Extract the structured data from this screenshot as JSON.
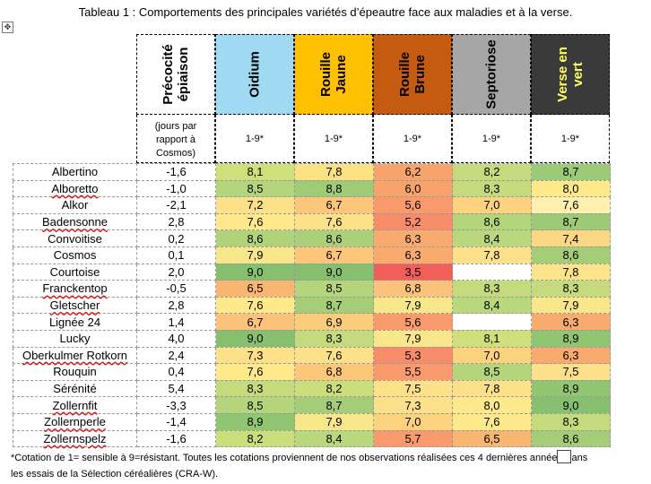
{
  "caption": "Tableau 1 : Comportements des principales variétés d’épeautre face aux maladies et à la verse.",
  "move_handle_glyph": "✥",
  "headers": {
    "precocite": "Précocité\népiaison",
    "precocite_sub": [
      "(jours par",
      "rapport à",
      "Cosmos)"
    ],
    "columns": [
      {
        "label": "Oidium",
        "bg": "#9fd9f2",
        "fg": "#000000"
      },
      {
        "label": "Rouille\nJaune",
        "bg": "#ffc000",
        "fg": "#000000"
      },
      {
        "label": "Rouille\nBrune",
        "bg": "#c55a11",
        "fg": "#000000"
      },
      {
        "label": "Septoriose",
        "bg": "#a6a6a6",
        "fg": "#000000"
      },
      {
        "label": "Verse en\nvert",
        "bg": "#3a3a3a",
        "fg": "#ffff66"
      }
    ],
    "scale": "1-9*"
  },
  "rows": [
    {
      "name": "Albertino",
      "prec": "-1,6",
      "vals": [
        "8,1",
        "7,8",
        "6,2",
        "8,2",
        "8,7"
      ],
      "colors": [
        "#cfe07b",
        "#fce183",
        "#f8a36c",
        "#c5da7c",
        "#9cca77"
      ]
    },
    {
      "name": "Alboretto",
      "prec": "-1,0",
      "vals": [
        "8,5",
        "8,8",
        "6,0",
        "8,3",
        "8,0"
      ],
      "colors": [
        "#b5d57c",
        "#9fcb77",
        "#f8a36c",
        "#c5da7c",
        "#ffe98a"
      ]
    },
    {
      "name": "Alkor",
      "prec": "-2,1",
      "vals": [
        "7,2",
        "6,7",
        "5,6",
        "7,0",
        "7,6"
      ],
      "colors": [
        "#fde08a",
        "#fcc67b",
        "#f99a6c",
        "#fdd27e",
        "#fff0b0"
      ]
    },
    {
      "name": "Badensonne",
      "prec": "2,8",
      "vals": [
        "7,6",
        "7,6",
        "5,2",
        "8,6",
        "8,7"
      ],
      "colors": [
        "#ffe98a",
        "#fde08a",
        "#f68c6a",
        "#b4d47b",
        "#9cca77"
      ]
    },
    {
      "name": "Convoitise",
      "prec": "0,2",
      "vals": [
        "8,6",
        "8,6",
        "6,3",
        "8,4",
        "7,4"
      ],
      "colors": [
        "#b0d27a",
        "#acd07a",
        "#f9ab6f",
        "#b9d77c",
        "#fbd784"
      ]
    },
    {
      "name": "Cosmos",
      "prec": "0,1",
      "vals": [
        "7,9",
        "6,7",
        "6,3",
        "7,8",
        "8,6"
      ],
      "colors": [
        "#f7e68a",
        "#fcc67b",
        "#f9ab6f",
        "#fde08a",
        "#a5cd78"
      ]
    },
    {
      "name": "Courtoise",
      "prec": "2,0",
      "vals": [
        "9,0",
        "9,0",
        "3,5",
        null,
        "7,8"
      ],
      "colors": [
        "#86c06f",
        "#86c06f",
        "#f25f5a",
        null,
        "#fde48a"
      ]
    },
    {
      "name": "Franckentop",
      "prec": "-0,5",
      "vals": [
        "6,5",
        "8,5",
        "6,8",
        "8,3",
        "8,3"
      ],
      "colors": [
        "#f9b572",
        "#b5d57c",
        "#fbc27b",
        "#c5da7c",
        "#c5da7c"
      ]
    },
    {
      "name": "Gletscher",
      "prec": "2,8",
      "vals": [
        "7,6",
        "8,7",
        "7,9",
        "8,4",
        "7,9"
      ],
      "colors": [
        "#ffe98a",
        "#a5cd78",
        "#f7e68a",
        "#b9d77c",
        "#f7e68a"
      ]
    },
    {
      "name": "Lignée 24",
      "prec": "1,4",
      "vals": [
        "6,7",
        "6,9",
        "5,6",
        null,
        "6,3"
      ],
      "colors": [
        "#fbc27b",
        "#fccc7d",
        "#f99a6c",
        null,
        "#f9ab6f"
      ]
    },
    {
      "name": "Lucky",
      "prec": "4,0",
      "vals": [
        "9,0",
        "8,3",
        "7,9",
        "8,1",
        "8,9"
      ],
      "colors": [
        "#86c06f",
        "#c5da7c",
        "#f7e68a",
        "#cfe07b",
        "#90c572"
      ]
    },
    {
      "name": "Oberkulmer Rotkorn",
      "prec": "2,4",
      "vals": [
        "7,3",
        "7,6",
        "5,3",
        "7,0",
        "6,3"
      ],
      "colors": [
        "#fde08a",
        "#fde08a",
        "#f68c6a",
        "#fdd27e",
        "#f9ab6f"
      ]
    },
    {
      "name": "Rouquin",
      "prec": "0,4",
      "vals": [
        "7,6",
        "6,8",
        "5,5",
        "8,5",
        "7,5"
      ],
      "colors": [
        "#ffe98a",
        "#fcc67b",
        "#f99a6c",
        "#b5d57c",
        "#fde08a"
      ]
    },
    {
      "name": "Sérénité",
      "prec": "5,4",
      "vals": [
        "8,3",
        "8,2",
        "7,5",
        "7,8",
        "8,9"
      ],
      "colors": [
        "#c5da7c",
        "#cbde7c",
        "#fde08a",
        "#fde08a",
        "#90c572"
      ]
    },
    {
      "name": "Zollernfit",
      "prec": "-3,3",
      "vals": [
        "8,5",
        "8,7",
        "7,3",
        "8,0",
        "9,0"
      ],
      "colors": [
        "#b5d57c",
        "#a5cd78",
        "#fde08a",
        "#ffe98a",
        "#86c06f"
      ]
    },
    {
      "name": "Zollernperle",
      "prec": "-1,4",
      "vals": [
        "8,9",
        "7,9",
        "7,0",
        "7,6",
        "8,3"
      ],
      "colors": [
        "#90c572",
        "#f7e68a",
        "#fdd27e",
        "#ffe98a",
        "#c5da7c"
      ]
    },
    {
      "name": "Zollernspelz",
      "prec": "-1,6",
      "vals": [
        "8,2",
        "8,4",
        "5,7",
        "6,5",
        "8,6"
      ],
      "colors": [
        "#cbde7c",
        "#b9d77c",
        "#f99a6c",
        "#f9b572",
        "#a5cd78"
      ]
    }
  ],
  "spellcheck_names": [
    "Alboretto",
    "Badensonne",
    "Franckentop",
    "Gletscher",
    "Oberkulmer Rotkorn",
    "Zollernfit",
    "Zollernperle",
    "Zollernspelz"
  ],
  "footnote": {
    "line1_a": "*Cotation de 1= sensible à 9=résistant. Toutes les cotations proviennent de nos observations réalisées ces 4 dernières année",
    "line1_b": "ans",
    "line2": "les essais de la Sélection céréalières (CRA-W)."
  }
}
